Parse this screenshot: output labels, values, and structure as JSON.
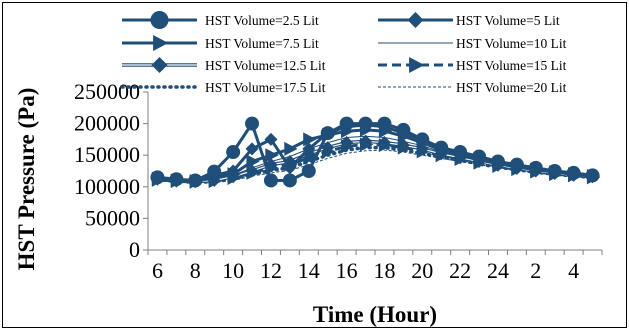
{
  "chart_data": {
    "type": "line",
    "xlabel": "Time (Hour)",
    "ylabel": "HST Pressure (Pa)",
    "x": [
      6,
      7,
      8,
      9,
      10,
      11,
      12,
      13,
      14,
      15,
      16,
      17,
      18,
      19,
      20,
      21,
      22,
      23,
      24,
      1,
      2,
      3,
      4,
      5
    ],
    "x_tick_labels": [
      "6",
      "8",
      "10",
      "12",
      "14",
      "16",
      "18",
      "20",
      "22",
      "24",
      "2",
      "4"
    ],
    "ylim": [
      0,
      250000
    ],
    "y_ticks": [
      0,
      50000,
      100000,
      150000,
      200000,
      250000
    ],
    "grid": false,
    "legend_position": "top",
    "color": "#1F4E79",
    "series": [
      {
        "name": "HST Volume=2.5 Lit",
        "marker": "circle",
        "line": "solid-thick",
        "values": [
          115000,
          112000,
          110000,
          124000,
          155000,
          200000,
          110000,
          110000,
          125000,
          185000,
          200000,
          200000,
          200000,
          190000,
          175000,
          162000,
          155000,
          148000,
          140000,
          135000,
          130000,
          125000,
          122000,
          118000
        ]
      },
      {
        "name": "HST Volume=5 Lit",
        "marker": "diamond",
        "line": "solid-thick",
        "values": [
          114000,
          111000,
          110000,
          118000,
          125000,
          160000,
          175000,
          130000,
          160000,
          185000,
          195000,
          198000,
          195000,
          185000,
          172000,
          160000,
          152000,
          145000,
          138000,
          132000,
          128000,
          124000,
          121000,
          117000
        ]
      },
      {
        "name": "HST Volume=7.5 Lit",
        "marker": "triangle",
        "line": "solid-thick",
        "values": [
          113000,
          110000,
          109000,
          115000,
          120000,
          140000,
          150000,
          160000,
          175000,
          182000,
          188000,
          190000,
          188000,
          180000,
          170000,
          158000,
          150000,
          143000,
          137000,
          131000,
          127000,
          123000,
          120000,
          117000
        ]
      },
      {
        "name": "HST Volume=10 Lit",
        "marker": "none",
        "line": "solid-thin",
        "values": [
          112000,
          110000,
          108000,
          112000,
          118000,
          130000,
          140000,
          148000,
          160000,
          170000,
          178000,
          180000,
          178000,
          172000,
          165000,
          155000,
          148000,
          141000,
          135000,
          130000,
          126000,
          122000,
          119000,
          116000
        ]
      },
      {
        "name": "HST Volume=12.5 Lit",
        "marker": "diamond",
        "line": "double",
        "values": [
          112000,
          109000,
          108000,
          110000,
          116000,
          125000,
          135000,
          140000,
          152000,
          162000,
          170000,
          172000,
          170000,
          166000,
          160000,
          152000,
          146000,
          140000,
          134000,
          129000,
          125000,
          121000,
          118000,
          116000
        ]
      },
      {
        "name": "HST Volume=15 Lit",
        "marker": "triangle",
        "line": "dashed-thick",
        "values": [
          111000,
          109000,
          108000,
          109000,
          114000,
          122000,
          130000,
          135000,
          146000,
          156000,
          164000,
          167000,
          166000,
          162000,
          156000,
          150000,
          144000,
          138000,
          133000,
          128000,
          124000,
          120000,
          118000,
          115000
        ]
      },
      {
        "name": "HST Volume=17.5 Lit",
        "marker": "none",
        "line": "dotted-thick",
        "values": [
          111000,
          109000,
          107000,
          108000,
          112000,
          120000,
          126000,
          130000,
          140000,
          150000,
          158000,
          162000,
          162000,
          158000,
          153000,
          147000,
          142000,
          136000,
          131000,
          127000,
          123000,
          120000,
          117000,
          115000
        ]
      },
      {
        "name": "HST Volume=20 Lit",
        "marker": "none",
        "line": "dashed-thin",
        "values": [
          110000,
          108000,
          107000,
          107000,
          110000,
          117000,
          122000,
          126000,
          135000,
          145000,
          153000,
          157000,
          158000,
          155000,
          150000,
          145000,
          140000,
          135000,
          130000,
          126000,
          122000,
          119000,
          116000,
          114000
        ]
      }
    ]
  }
}
